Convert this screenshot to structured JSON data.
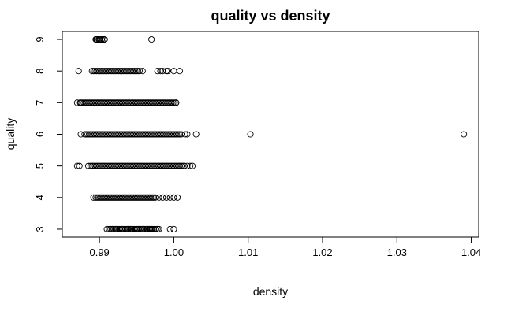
{
  "chart_data": {
    "type": "scatter",
    "title": "quality vs density",
    "xlabel": "density",
    "ylabel": "quality",
    "xlim": [
      0.985,
      1.041
    ],
    "ylim": [
      2.75,
      9.25
    ],
    "xticks": [
      0.99,
      1.0,
      1.01,
      1.02,
      1.03,
      1.04
    ],
    "xtick_labels": [
      "0.99",
      "1.00",
      "1.01",
      "1.02",
      "1.03",
      "1.04"
    ],
    "yticks": [
      3,
      4,
      5,
      6,
      7,
      8,
      9
    ],
    "ytick_labels": [
      "3",
      "4",
      "5",
      "6",
      "7",
      "8",
      "9"
    ],
    "grid": false,
    "marker": "open-circle",
    "color": "#000000",
    "groups": [
      {
        "quality": 3,
        "dense_range": [
          0.9915,
          0.9975
        ],
        "points": [
          0.991,
          0.9913,
          0.9917,
          0.9922,
          0.993,
          0.9938,
          0.9942,
          0.995,
          0.9953,
          0.9958,
          0.9965,
          0.9968,
          0.997,
          0.9978,
          0.998,
          0.9995,
          1.0
        ]
      },
      {
        "quality": 4,
        "dense_range": [
          0.9895,
          0.9975
        ],
        "points": [
          0.9892,
          0.998,
          0.9985,
          0.999,
          0.9995,
          1.0,
          1.0005
        ]
      },
      {
        "quality": 5,
        "dense_range": [
          0.989,
          1.0015
        ],
        "points": [
          0.987,
          0.9873,
          0.9885,
          0.9888,
          1.0018,
          1.0022,
          1.0025
        ]
      },
      {
        "quality": 6,
        "dense_range": [
          0.988,
          1.0008
        ],
        "points": [
          0.9875,
          1.001,
          1.0015,
          1.0018,
          1.003,
          1.0103,
          1.039
        ]
      },
      {
        "quality": 7,
        "dense_range": [
          0.9875,
          1.0003
        ],
        "points": [
          0.987,
          0.9874,
          1.0003
        ]
      },
      {
        "quality": 8,
        "dense_range": [
          0.989,
          0.9955
        ],
        "points": [
          0.9872,
          0.9958,
          0.9978,
          0.9982,
          0.9985,
          0.999,
          0.9992,
          1.0,
          1.0008
        ]
      },
      {
        "quality": 9,
        "dense_range": [
          0.9895,
          0.9905
        ],
        "points": [
          0.9896,
          0.99,
          0.9903,
          0.9907,
          0.997
        ]
      }
    ]
  }
}
